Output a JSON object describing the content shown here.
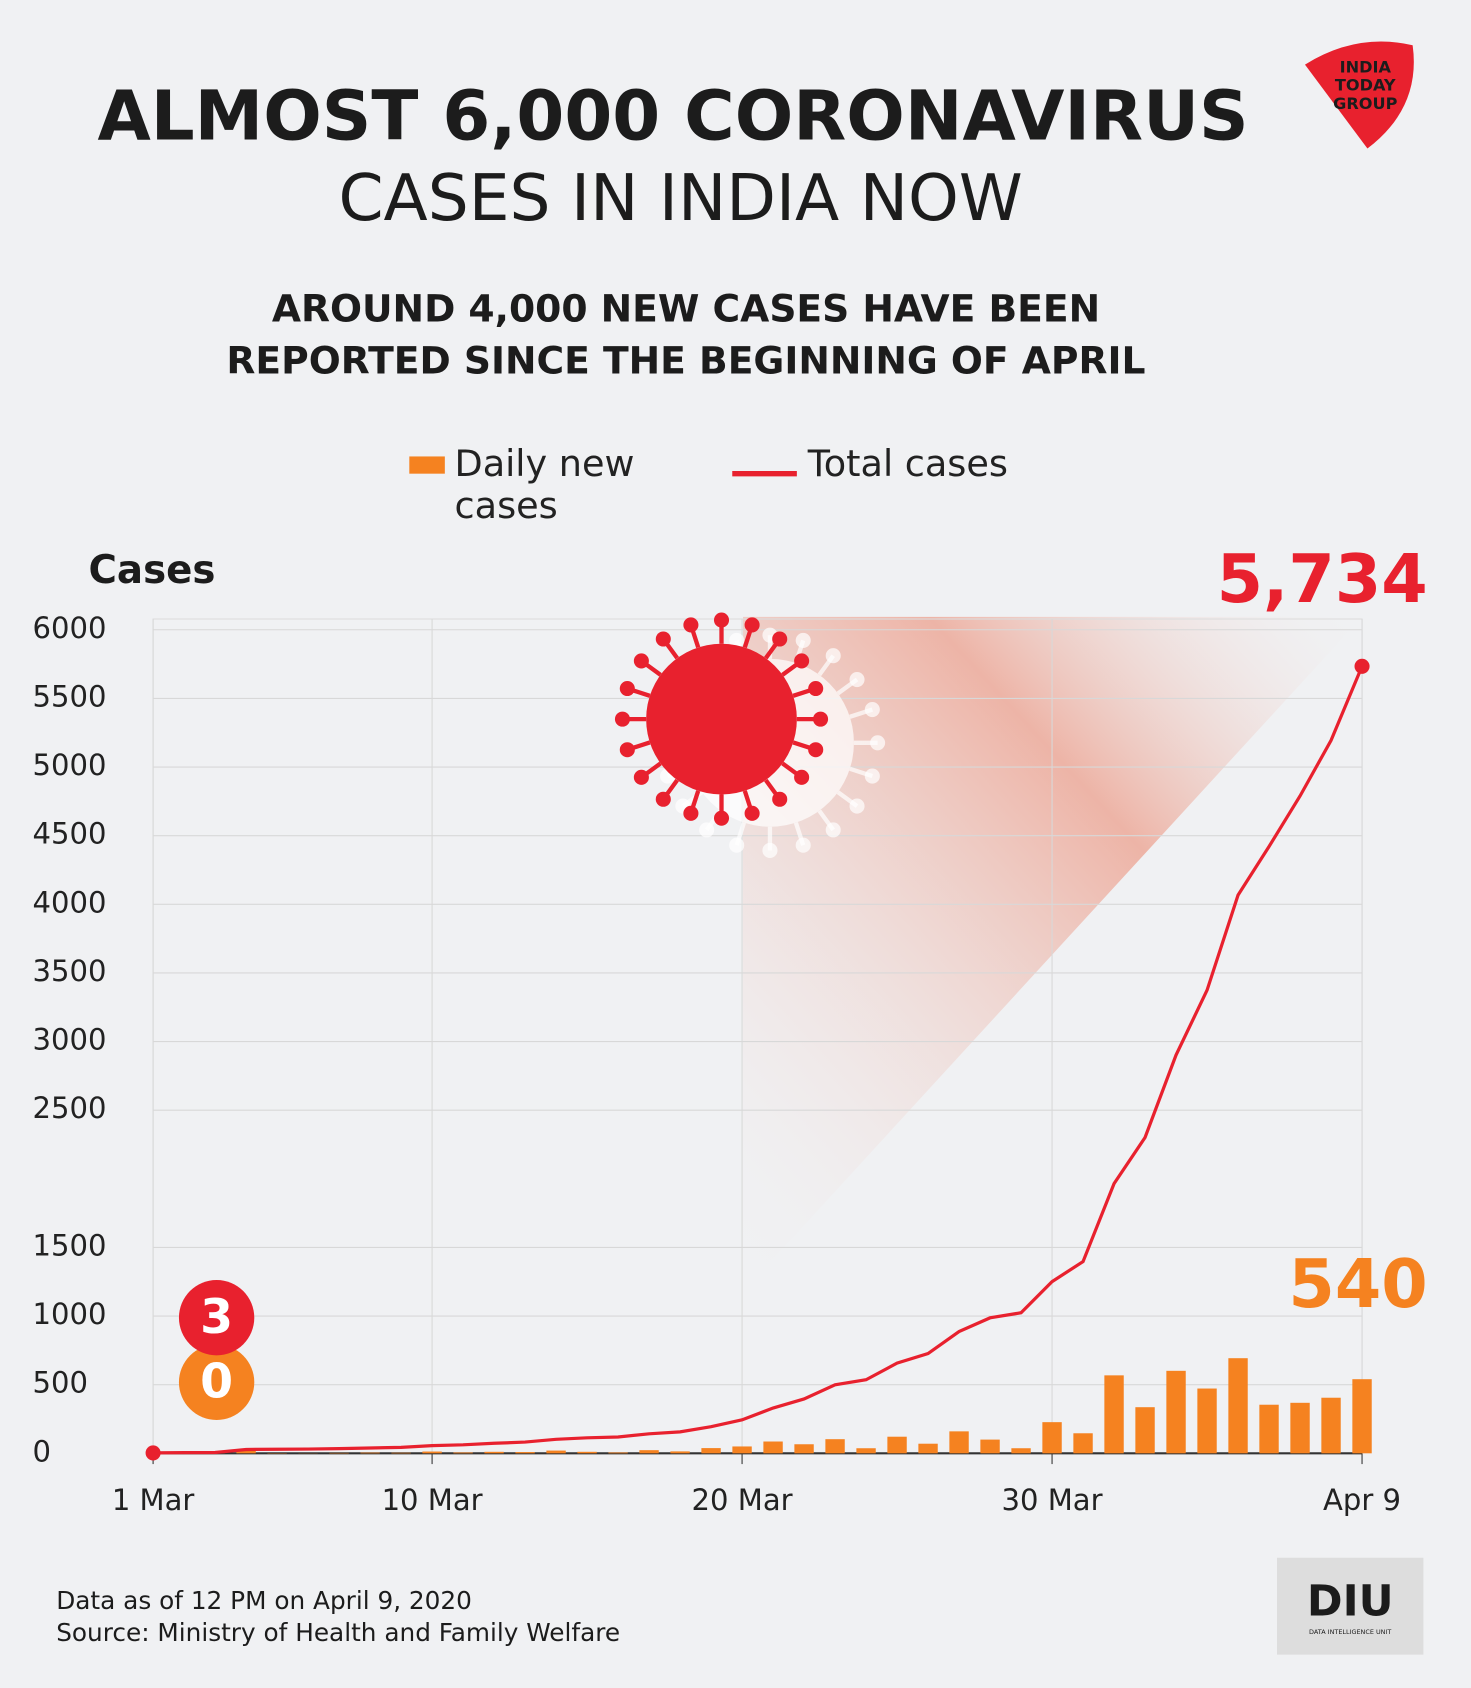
{
  "chart_data": {
    "type": "combo",
    "title": [
      "ALMOST 6,000 CORONAVIRUS",
      "CASES IN INDIA NOW"
    ],
    "subtitle": [
      "AROUND 4,000 NEW CASES HAVE BEEN",
      "REPORTED SINCE THE BEGINNING OF APRIL"
    ],
    "y_label": "Cases",
    "categories": [
      "1 Mar",
      null,
      null,
      null,
      null,
      null,
      null,
      null,
      null,
      "10 Mar",
      null,
      null,
      null,
      null,
      null,
      null,
      null,
      null,
      null,
      "20 Mar",
      null,
      null,
      null,
      null,
      null,
      null,
      null,
      null,
      null,
      "30 Mar",
      null,
      null,
      null,
      null,
      null,
      null,
      null,
      null,
      null,
      "Apr 9"
    ],
    "series": [
      {
        "name": "Daily new cases",
        "type": "bar",
        "color": "#f58220",
        "values": [
          0,
          2,
          1,
          22,
          2,
          1,
          3,
          5,
          4,
          13,
          6,
          11,
          9,
          20,
          11,
          6,
          23,
          14,
          38,
          50,
          86,
          66,
          103,
          37,
          121,
          70,
          160,
          100,
          37,
          227,
          146,
          568,
          336,
          601,
          472,
          693,
          354,
          368,
          405,
          540
        ],
        "value_labels": [
          "0",
          null,
          null,
          null,
          null,
          null,
          null,
          null,
          null,
          null,
          null,
          null,
          null,
          null,
          null,
          null,
          null,
          null,
          null,
          null,
          null,
          null,
          null,
          null,
          null,
          null,
          null,
          null,
          null,
          null,
          null,
          null,
          null,
          null,
          null,
          null,
          null,
          null,
          null,
          "540"
        ]
      },
      {
        "name": "Total cases",
        "type": "line",
        "color": "#e8212e",
        "values": [
          3,
          5,
          6,
          28,
          30,
          31,
          34,
          39,
          43,
          56,
          62,
          73,
          82,
          102,
          113,
          119,
          142,
          156,
          194,
          244,
          330,
          396,
          499,
          536,
          657,
          727,
          887,
          987,
          1024,
          1251,
          1397,
          1965,
          2301,
          2902,
          3374,
          4067,
          4421,
          4789,
          5194,
          5734
        ],
        "value_labels": [
          "3",
          null,
          null,
          null,
          null,
          null,
          null,
          null,
          null,
          null,
          null,
          null,
          null,
          null,
          null,
          null,
          null,
          null,
          null,
          null,
          null,
          null,
          null,
          null,
          null,
          null,
          null,
          null,
          null,
          null,
          null,
          null,
          null,
          null,
          null,
          null,
          null,
          null,
          null,
          "5,734"
        ]
      }
    ],
    "ylim": [
      0,
      6000
    ],
    "yticks": [
      0,
      500,
      1000,
      1500,
      2500,
      3000,
      3500,
      4000,
      4500,
      5000,
      5500,
      6000
    ],
    "grid": true,
    "footnotes": [
      "Data as of 12 PM on April 9, 2020",
      "Source: Ministry of Health and Family Welfare"
    ]
  },
  "logos": {
    "india_today": [
      "INDIA",
      "TODAY",
      "GROUP"
    ],
    "diu": "DIU",
    "diu_sub": "DATA INTELLIGENCE UNIT"
  }
}
